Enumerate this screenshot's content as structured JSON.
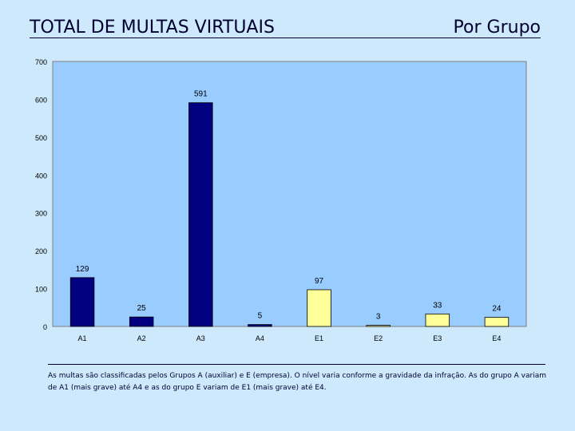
{
  "page": {
    "title": "TOTAL DE MULTAS VIRTUAIS",
    "subtitle": "Por Grupo",
    "footnote": "As multas são classificadas pelos Grupos A (auxiliar) e E (empresa). O nível varia conforme a gravidade da infração. As do grupo A variam de A1 (mais grave) até A4 e as do grupo E variam de E1 (mais grave) até E4."
  },
  "colors": {
    "background": "#cde9fb",
    "plot_area": "#99ccff",
    "group_a": "#000080",
    "group_e": "#ffff99",
    "text": "#000030"
  },
  "chart_data": {
    "type": "bar",
    "title": "",
    "xlabel": "",
    "ylabel": "",
    "categories": [
      "A1",
      "A2",
      "A3",
      "A4",
      "E1",
      "E2",
      "E3",
      "E4"
    ],
    "values": [
      129,
      25,
      591,
      5,
      97,
      3,
      33,
      24
    ],
    "groups": [
      "A",
      "A",
      "A",
      "A",
      "E",
      "E",
      "E",
      "E"
    ],
    "ylim": [
      0,
      700
    ],
    "yticks": [
      0,
      100,
      200,
      300,
      400,
      500,
      600,
      700
    ],
    "grid": false,
    "legend": "none"
  }
}
